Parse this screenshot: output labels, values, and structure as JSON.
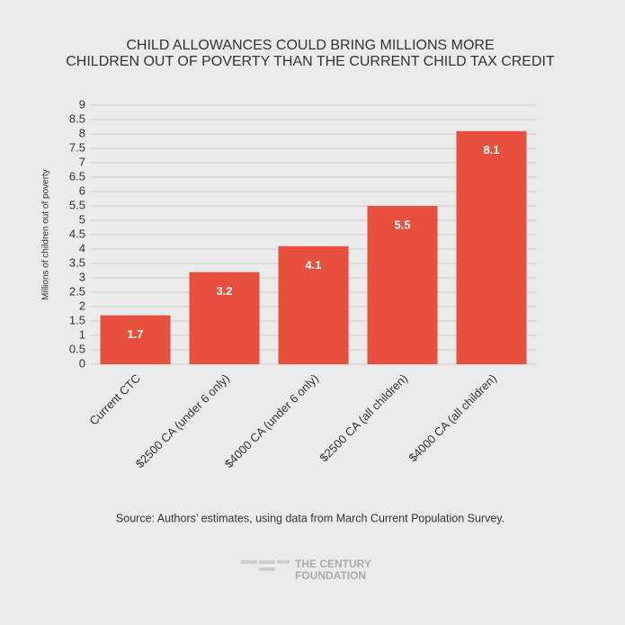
{
  "chart_data": {
    "type": "bar",
    "title": [
      "CHILD ALLOWANCES COULD BRING MILLIONS MORE",
      "CHILDREN OUT OF POVERTY THAN THE CURRENT CHILD TAX CREDIT"
    ],
    "y_label": "Millions of children out of poverty",
    "categories": [
      "Current CTC",
      "$2500 CA (under 6 only)",
      "$4000 CA (under 6 only)",
      "$2500 CA (all children)",
      "$4000 CA (all children)"
    ],
    "values": [
      1.7,
      3.2,
      4.1,
      5.5,
      8.1
    ],
    "color": "#e84f3d",
    "ylim": [
      0,
      9
    ],
    "yticks": [
      0,
      0.5,
      1,
      1.5,
      2,
      2.5,
      3,
      3.5,
      4,
      4.5,
      5,
      5.5,
      6,
      6.5,
      7,
      7.5,
      8,
      8.5,
      9
    ],
    "grid": true,
    "source": "Source: Authors’ estimates, using data from March Current Population Survey.",
    "logo": [
      "THE CENTURY",
      "FOUNDATION"
    ]
  }
}
